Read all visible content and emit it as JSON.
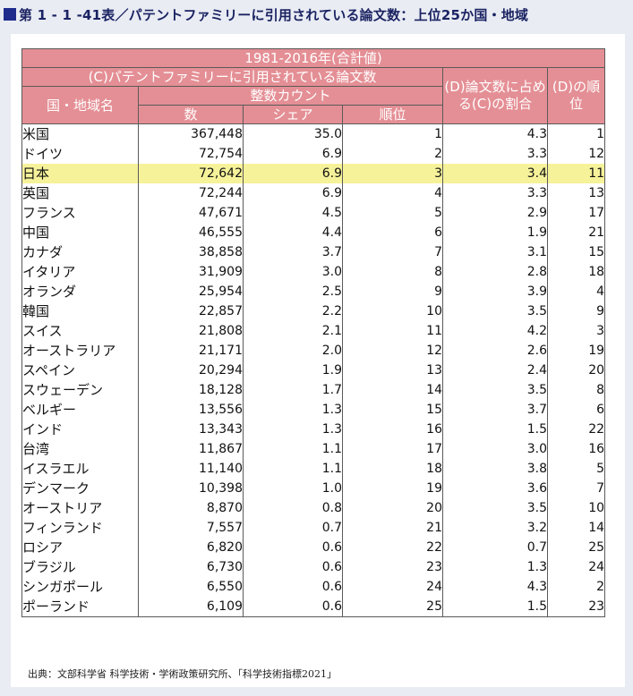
{
  "title": "第 1 - 1 -41表／パテントファミリーに引用されている論文数：上位25か国・地域",
  "header": {
    "period": "1981-2016年(合計値)",
    "group_c": "(C)パテントファミリーに引用されている論文数",
    "country": "国・地域名",
    "integer_count": "整数カウント",
    "count": "数",
    "share": "シェア",
    "rank": "順位",
    "ratio_d": "(D)論文数に占める(C)の割合",
    "rank_d": "(D)の順位"
  },
  "rows": [
    {
      "country": "米国",
      "count": "367,448",
      "share": "35.0",
      "rank": "1",
      "ratio": "4.3",
      "rank_d": "1"
    },
    {
      "country": "ドイツ",
      "count": "72,754",
      "share": "6.9",
      "rank": "2",
      "ratio": "3.3",
      "rank_d": "12"
    },
    {
      "country": "日本",
      "count": "72,642",
      "share": "6.9",
      "rank": "3",
      "ratio": "3.4",
      "rank_d": "11",
      "highlight": true
    },
    {
      "country": "英国",
      "count": "72,244",
      "share": "6.9",
      "rank": "4",
      "ratio": "3.3",
      "rank_d": "13"
    },
    {
      "country": "フランス",
      "count": "47,671",
      "share": "4.5",
      "rank": "5",
      "ratio": "2.9",
      "rank_d": "17"
    },
    {
      "country": "中国",
      "count": "46,555",
      "share": "4.4",
      "rank": "6",
      "ratio": "1.9",
      "rank_d": "21"
    },
    {
      "country": "カナダ",
      "count": "38,858",
      "share": "3.7",
      "rank": "7",
      "ratio": "3.1",
      "rank_d": "15"
    },
    {
      "country": "イタリア",
      "count": "31,909",
      "share": "3.0",
      "rank": "8",
      "ratio": "2.8",
      "rank_d": "18"
    },
    {
      "country": "オランダ",
      "count": "25,954",
      "share": "2.5",
      "rank": "9",
      "ratio": "3.9",
      "rank_d": "4"
    },
    {
      "country": "韓国",
      "count": "22,857",
      "share": "2.2",
      "rank": "10",
      "ratio": "3.5",
      "rank_d": "9"
    },
    {
      "country": "スイス",
      "count": "21,808",
      "share": "2.1",
      "rank": "11",
      "ratio": "4.2",
      "rank_d": "3"
    },
    {
      "country": "オーストラリア",
      "count": "21,171",
      "share": "2.0",
      "rank": "12",
      "ratio": "2.6",
      "rank_d": "19"
    },
    {
      "country": "スペイン",
      "count": "20,294",
      "share": "1.9",
      "rank": "13",
      "ratio": "2.4",
      "rank_d": "20"
    },
    {
      "country": "スウェーデン",
      "count": "18,128",
      "share": "1.7",
      "rank": "14",
      "ratio": "3.5",
      "rank_d": "8"
    },
    {
      "country": "ベルギー",
      "count": "13,556",
      "share": "1.3",
      "rank": "15",
      "ratio": "3.7",
      "rank_d": "6"
    },
    {
      "country": "インド",
      "count": "13,343",
      "share": "1.3",
      "rank": "16",
      "ratio": "1.5",
      "rank_d": "22"
    },
    {
      "country": "台湾",
      "count": "11,867",
      "share": "1.1",
      "rank": "17",
      "ratio": "3.0",
      "rank_d": "16"
    },
    {
      "country": "イスラエル",
      "count": "11,140",
      "share": "1.1",
      "rank": "18",
      "ratio": "3.8",
      "rank_d": "5"
    },
    {
      "country": "デンマーク",
      "count": "10,398",
      "share": "1.0",
      "rank": "19",
      "ratio": "3.6",
      "rank_d": "7"
    },
    {
      "country": "オーストリア",
      "count": "8,870",
      "share": "0.8",
      "rank": "20",
      "ratio": "3.5",
      "rank_d": "10"
    },
    {
      "country": "フィンランド",
      "count": "7,557",
      "share": "0.7",
      "rank": "21",
      "ratio": "3.2",
      "rank_d": "14"
    },
    {
      "country": "ロシア",
      "count": "6,820",
      "share": "0.6",
      "rank": "22",
      "ratio": "0.7",
      "rank_d": "25"
    },
    {
      "country": "ブラジル",
      "count": "6,730",
      "share": "0.6",
      "rank": "23",
      "ratio": "1.3",
      "rank_d": "24"
    },
    {
      "country": "シンガポール",
      "count": "6,550",
      "share": "0.6",
      "rank": "24",
      "ratio": "4.3",
      "rank_d": "2"
    },
    {
      "country": "ポーランド",
      "count": "6,109",
      "share": "0.6",
      "rank": "25",
      "ratio": "1.5",
      "rank_d": "23"
    }
  ],
  "source": "出典：文部科学省 科学技術・学術政策研究所、「科学技術指標2021」",
  "colors": {
    "header_bg": "#e48f95",
    "highlight_bg": "#f6f29a",
    "title_color": "#1b2363",
    "page_bg": "#e9ecf3"
  }
}
